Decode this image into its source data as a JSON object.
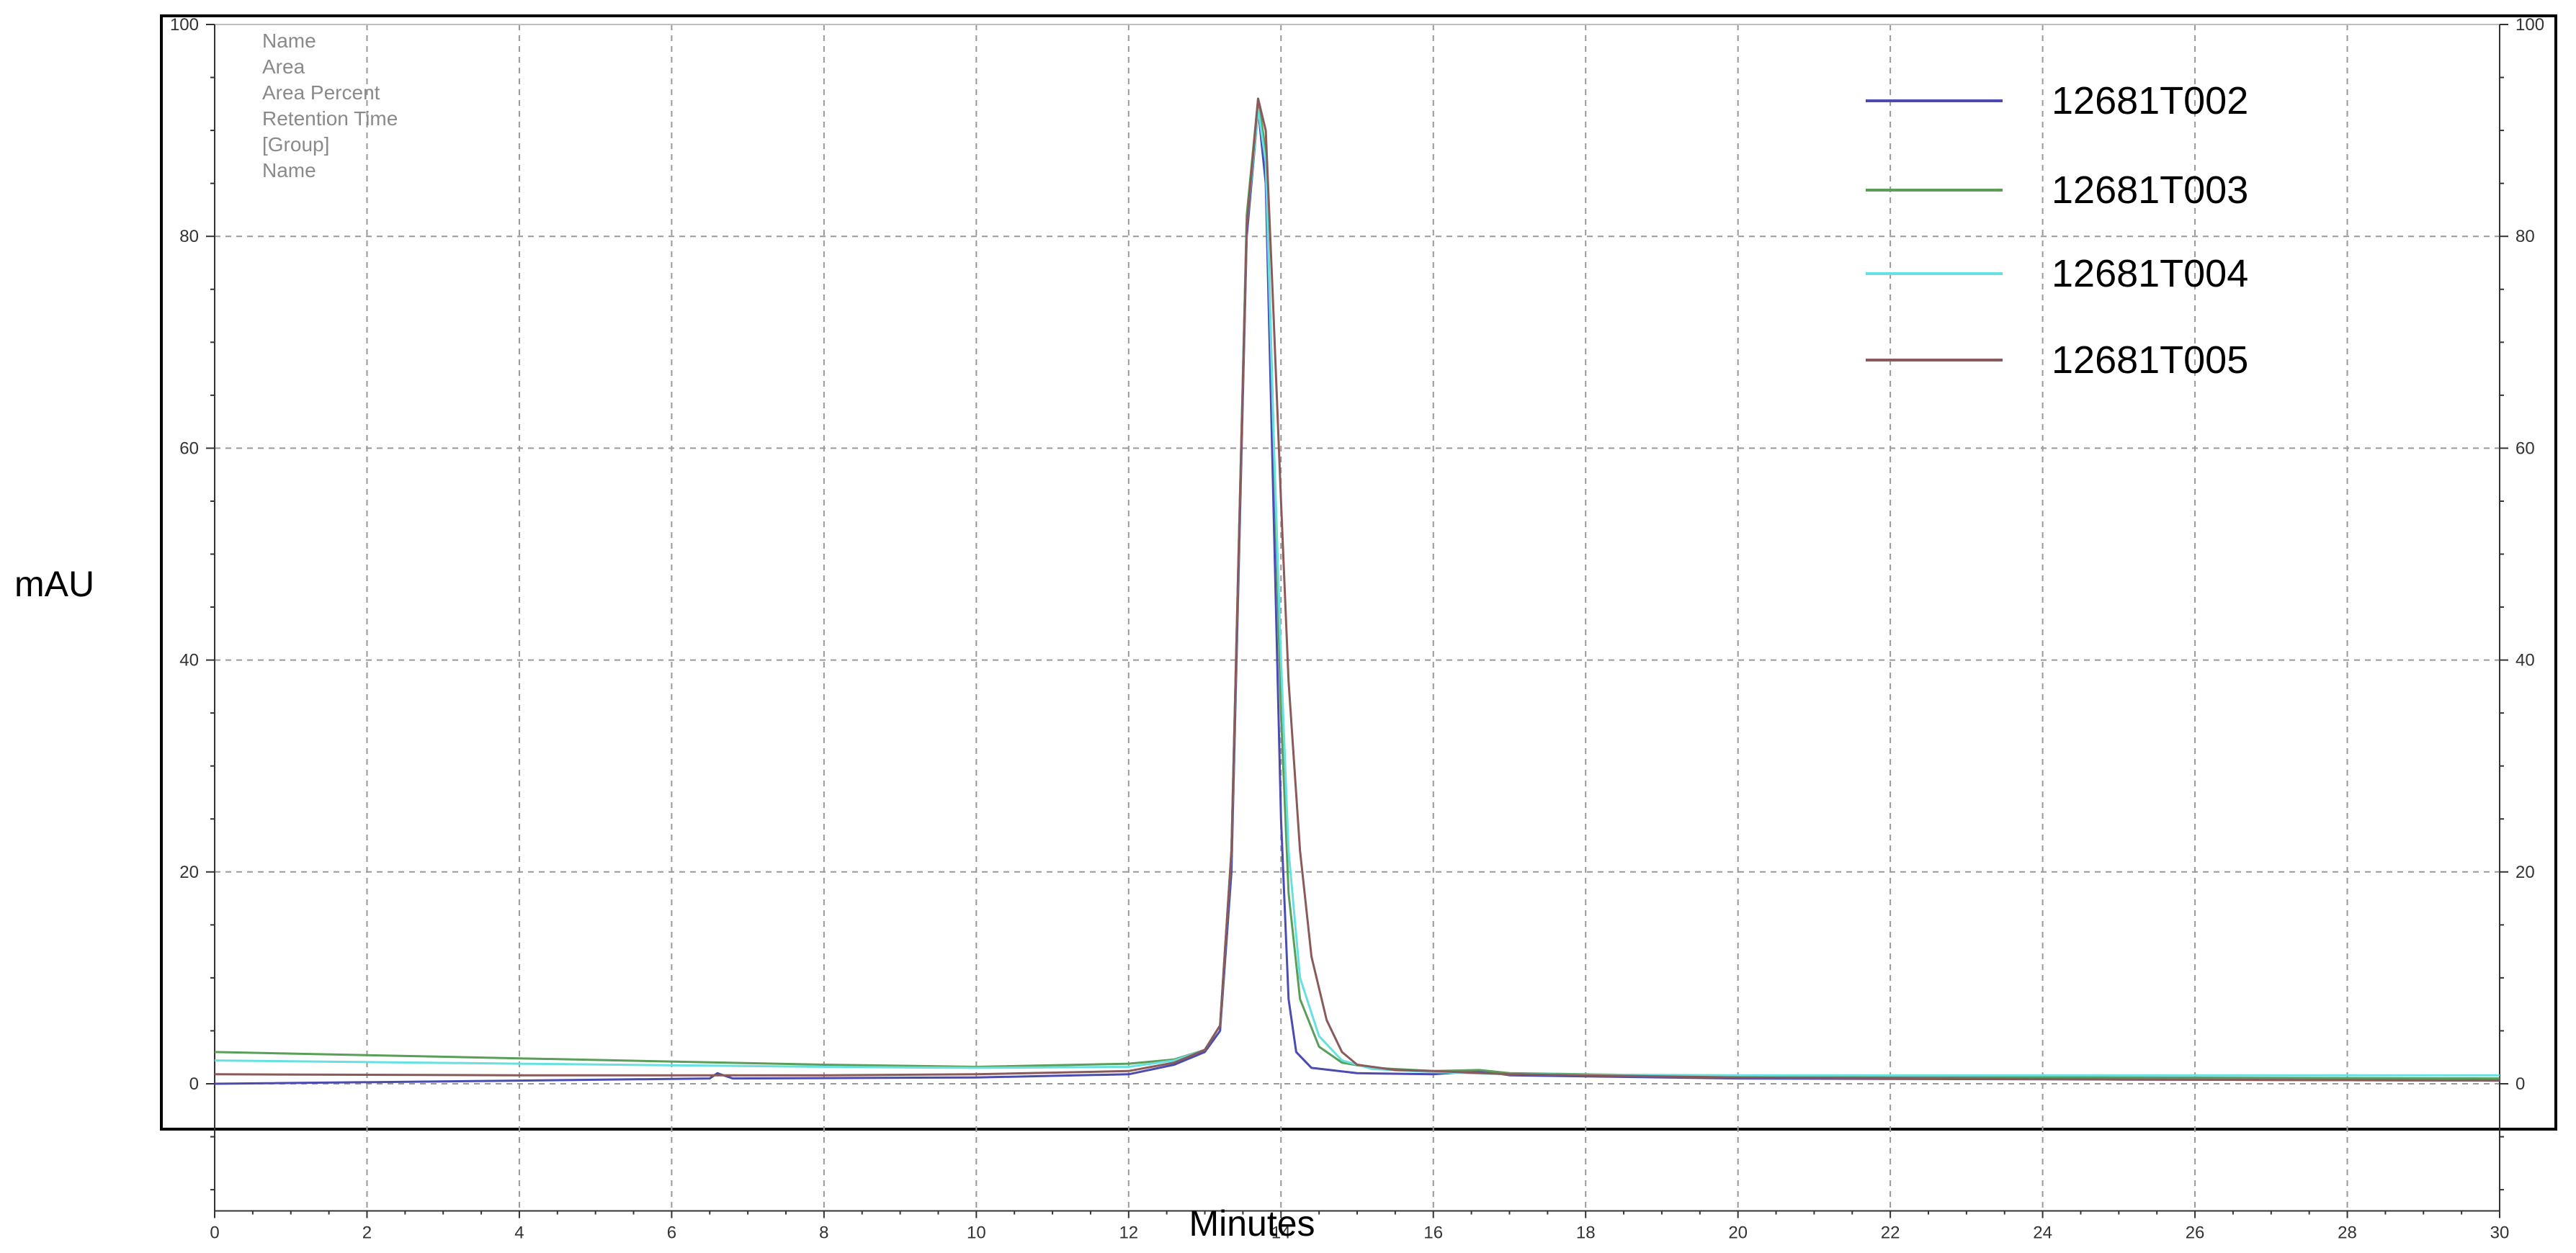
{
  "chart_data": {
    "type": "line",
    "xlabel": "Minutes",
    "ylabel": "mAU",
    "xlim": [
      0,
      30
    ],
    "ylim": [
      -12,
      100
    ],
    "x_ticks": [
      0,
      2,
      4,
      6,
      8,
      10,
      12,
      14,
      16,
      18,
      20,
      22,
      24,
      26,
      28,
      30
    ],
    "y_ticks": [
      0,
      20,
      40,
      60,
      80,
      100
    ],
    "grid": true,
    "right_axis": true,
    "legend_position": "top-right",
    "peak_info_labels": [
      "Name",
      "Area",
      "Area Percent",
      "Retention Time",
      "[Group]",
      "Name"
    ],
    "series": [
      {
        "name": "12681T002",
        "color": "#4b4bb0",
        "points": [
          [
            0,
            0
          ],
          [
            4,
            0.3
          ],
          [
            6.5,
            0.5
          ],
          [
            6.6,
            1.0
          ],
          [
            6.8,
            0.5
          ],
          [
            10,
            0.6
          ],
          [
            12,
            0.9
          ],
          [
            12.6,
            1.8
          ],
          [
            13.0,
            3.0
          ],
          [
            13.2,
            5.0
          ],
          [
            13.35,
            20
          ],
          [
            13.45,
            50
          ],
          [
            13.55,
            80
          ],
          [
            13.7,
            92
          ],
          [
            13.8,
            85
          ],
          [
            13.9,
            55
          ],
          [
            14.0,
            25
          ],
          [
            14.1,
            8
          ],
          [
            14.2,
            3
          ],
          [
            14.4,
            1.5
          ],
          [
            15,
            1.0
          ],
          [
            16,
            0.9
          ],
          [
            16.6,
            1.2
          ],
          [
            17,
            0.8
          ],
          [
            20,
            0.5
          ],
          [
            25,
            0.4
          ],
          [
            30,
            0.3
          ]
        ]
      },
      {
        "name": "12681T003",
        "color": "#5a9e5a",
        "points": [
          [
            0,
            3.0
          ],
          [
            4,
            2.4
          ],
          [
            8,
            1.8
          ],
          [
            10,
            1.6
          ],
          [
            12,
            1.9
          ],
          [
            12.6,
            2.3
          ],
          [
            13.0,
            3.2
          ],
          [
            13.2,
            5.5
          ],
          [
            13.35,
            22
          ],
          [
            13.45,
            52
          ],
          [
            13.55,
            82
          ],
          [
            13.7,
            93
          ],
          [
            13.8,
            88
          ],
          [
            13.9,
            62
          ],
          [
            14.0,
            35
          ],
          [
            14.1,
            18
          ],
          [
            14.25,
            8
          ],
          [
            14.5,
            3.5
          ],
          [
            14.8,
            2.0
          ],
          [
            15.2,
            1.5
          ],
          [
            16,
            1.2
          ],
          [
            16.6,
            1.3
          ],
          [
            17,
            1.0
          ],
          [
            20,
            0.7
          ],
          [
            25,
            0.6
          ],
          [
            30,
            0.5
          ]
        ]
      },
      {
        "name": "12681T004",
        "color": "#66e0e0",
        "points": [
          [
            0,
            2.2
          ],
          [
            4,
            1.9
          ],
          [
            8,
            1.6
          ],
          [
            10,
            1.5
          ],
          [
            12,
            1.6
          ],
          [
            12.6,
            2.2
          ],
          [
            13.0,
            3.2
          ],
          [
            13.2,
            5.5
          ],
          [
            13.35,
            22
          ],
          [
            13.45,
            52
          ],
          [
            13.55,
            81
          ],
          [
            13.7,
            92
          ],
          [
            13.8,
            87
          ],
          [
            13.9,
            62
          ],
          [
            14.0,
            40
          ],
          [
            14.1,
            22
          ],
          [
            14.25,
            10
          ],
          [
            14.5,
            4.5
          ],
          [
            14.8,
            2.2
          ],
          [
            15.2,
            1.4
          ],
          [
            16,
            1.1
          ],
          [
            17,
            0.9
          ],
          [
            20,
            0.8
          ],
          [
            25,
            0.8
          ],
          [
            30,
            0.8
          ]
        ]
      },
      {
        "name": "12681T005",
        "color": "#8a5a5a",
        "points": [
          [
            0,
            0.9
          ],
          [
            4,
            0.8
          ],
          [
            8,
            0.8
          ],
          [
            10,
            0.9
          ],
          [
            12,
            1.2
          ],
          [
            12.6,
            2.0
          ],
          [
            13.0,
            3.2
          ],
          [
            13.2,
            5.5
          ],
          [
            13.35,
            22
          ],
          [
            13.45,
            52
          ],
          [
            13.55,
            81
          ],
          [
            13.7,
            93
          ],
          [
            13.8,
            90
          ],
          [
            13.9,
            73
          ],
          [
            14.0,
            55
          ],
          [
            14.1,
            38
          ],
          [
            14.25,
            22
          ],
          [
            14.4,
            12
          ],
          [
            14.6,
            6
          ],
          [
            14.8,
            3.0
          ],
          [
            15.0,
            1.8
          ],
          [
            15.5,
            1.3
          ],
          [
            16,
            1.2
          ],
          [
            17,
            0.9
          ],
          [
            20,
            0.6
          ],
          [
            25,
            0.4
          ],
          [
            30,
            0.3
          ]
        ]
      }
    ]
  }
}
